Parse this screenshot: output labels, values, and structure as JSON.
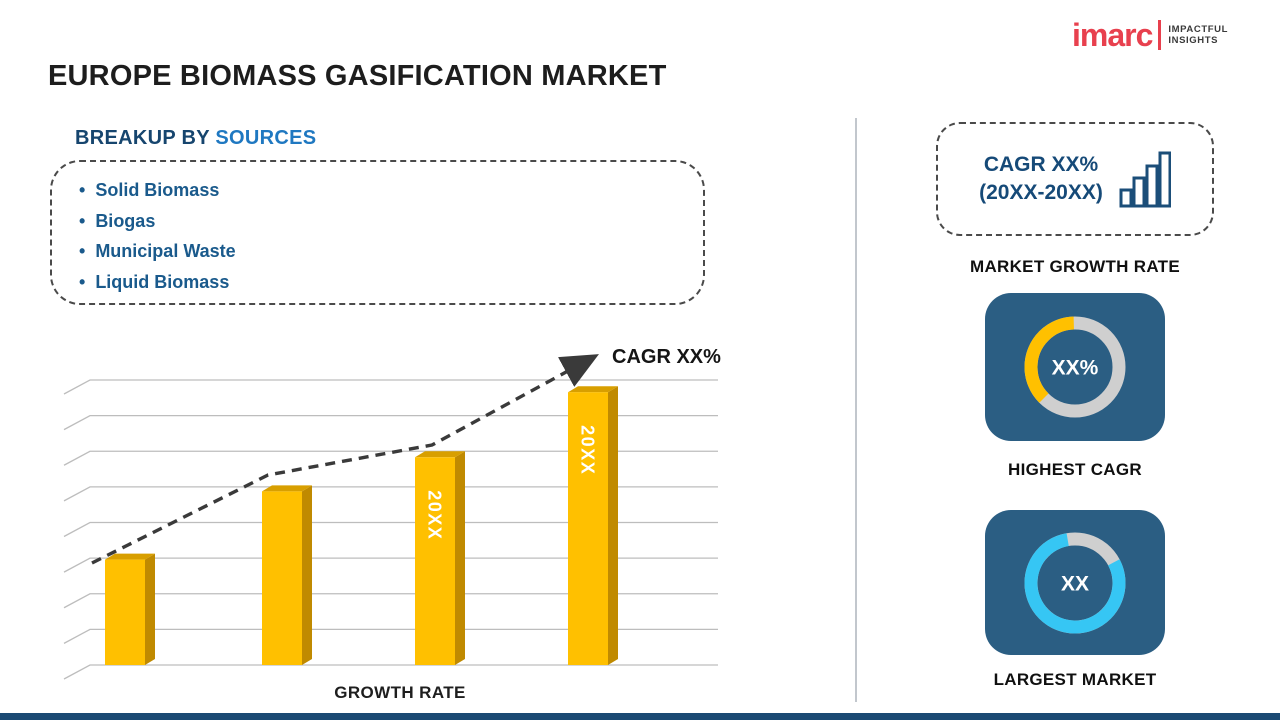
{
  "logo": {
    "brand": "imarc",
    "tagline_line1": "IMPACTFUL",
    "tagline_line2": "INSIGHTS"
  },
  "page": {
    "title": "EUROPE BIOMASS GASIFICATION MARKET"
  },
  "breakup": {
    "heading_prefix": "BREAKUP BY",
    "heading_highlight": "SOURCES",
    "items": [
      "Solid Biomass",
      "Biogas",
      "Municipal Waste",
      "Liquid Biomass"
    ]
  },
  "sidebar": {
    "cagr_box_line1": "CAGR XX%",
    "cagr_box_line2": "(20XX-20XX)",
    "market_growth_label": "MARKET GROWTH RATE",
    "highest_cagr_label": "HIGHEST CAGR",
    "largest_market_label": "LARGEST MARKET"
  },
  "colors": {
    "navy": "#1b4e79",
    "bar_gold": "#FFC000",
    "cyan": "#36C6F4",
    "card_blue": "#2B5E83",
    "logo_red": "#E8404E"
  },
  "chart_data": [
    {
      "type": "bar",
      "title": "Growth rate trend (placeholder values)",
      "categories": [
        "",
        "",
        "20XX",
        "20XX"
      ],
      "values": [
        34,
        56,
        67,
        88
      ],
      "ylim": [
        0,
        100
      ],
      "xlabel": "GROWTH RATE",
      "ylabel": "",
      "grid": true,
      "legend": "none",
      "trend_label": "CAGR XX%",
      "bar_color": "#FFC000",
      "bar_side_color": "#C08A00",
      "bar_top_color": "#D89F00"
    },
    {
      "type": "donut",
      "label": "HIGHEST CAGR",
      "center_text": "XX%",
      "value_pct": 37,
      "rotation": 135,
      "color": "#FFC000",
      "ring_color": "#CFCFCF"
    },
    {
      "type": "donut",
      "label": "LARGEST MARKET",
      "center_text": "XX",
      "value_pct": 80,
      "rotation": -28,
      "color": "#36C6F4",
      "ring_color": "#CFCFCF"
    }
  ]
}
